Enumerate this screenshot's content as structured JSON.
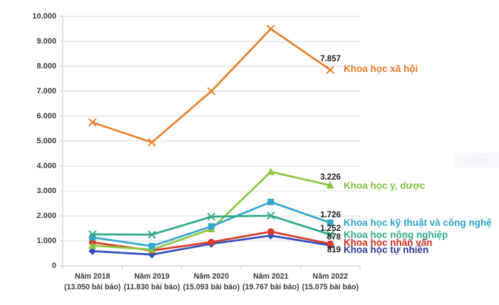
{
  "watermark": {
    "text": "Full-sc"
  },
  "chart_data": {
    "type": "line",
    "title": "",
    "xlabel": "",
    "ylabel": "",
    "ylim": [
      0,
      10000
    ],
    "grid": "horizontal",
    "legend_position": "right-of-line-ends",
    "y_ticks": [
      "0",
      "1.000",
      "2.000",
      "3.000",
      "4.000",
      "5.000",
      "6.000",
      "7.000",
      "8.000",
      "9.000",
      "10.000"
    ],
    "categories": [
      "Năm 2018",
      "Năm 2019",
      "Năm 2020",
      "Năm 2021",
      "Năm 2022"
    ],
    "category_sublabels": [
      "(13.050 bài báo)",
      "(11.830 bài báo)",
      "(15.093 bài báo)",
      "(19.767 bài báo)",
      "(15.075 bài báo)"
    ],
    "series": [
      {
        "name": "Khoa học xã hội",
        "color": "#E8802B",
        "label_color": "#E87722",
        "marker": "x",
        "values": [
          5750,
          4950,
          7000,
          9500,
          7857
        ],
        "end_label": "7.857"
      },
      {
        "name": "Khoa học y, dược",
        "color": "#8CC63F",
        "label_color": "#7FC340",
        "marker": "triangle",
        "values": [
          810,
          650,
          1470,
          3770,
          3226
        ],
        "end_label": "3.226"
      },
      {
        "name": "Khoa học kỹ thuật và công nghệ",
        "color": "#35A7CD",
        "label_color": "#2EA3CE",
        "marker": "square",
        "values": [
          1140,
          790,
          1580,
          2560,
          1726
        ],
        "end_label": "1.726"
      },
      {
        "name": "Khoa học nông nghiệp",
        "color": "#2FA98C",
        "label_color": "#2FA98C",
        "marker": "x",
        "values": [
          1260,
          1250,
          1970,
          2010,
          1252
        ],
        "end_label": "1.252"
      },
      {
        "name": "Khoa học nhân văn",
        "color": "#D93A2B",
        "label_color": "#D22F1E",
        "marker": "circle",
        "values": [
          940,
          610,
          950,
          1370,
          878
        ],
        "end_label": "878"
      },
      {
        "name": "Khoa học tự nhiên",
        "color": "#3351C1",
        "label_color": "#2B3A9B",
        "marker": "diamond",
        "values": [
          590,
          450,
          880,
          1210,
          819
        ],
        "end_label": "819"
      }
    ]
  }
}
